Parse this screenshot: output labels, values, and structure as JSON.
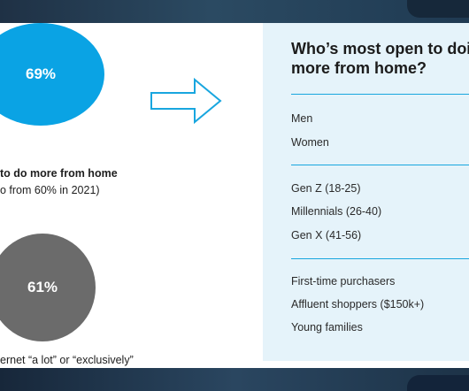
{
  "chart_data": [
    {
      "type": "pie",
      "values": [
        69
      ],
      "value_label": "69%",
      "caption_lines": [
        "to do more from home",
        "o from 60% in 2021)"
      ],
      "color": "#0aa3e4"
    },
    {
      "type": "pie",
      "values": [
        61
      ],
      "value_label": "61%",
      "caption_lines": [
        "ernet “a lot” or “exclusively”"
      ],
      "color": "#6b6b6b"
    }
  ],
  "panel": {
    "title_line1": "Who’s most open to doi",
    "title_line2": "more from home?",
    "groups": [
      [
        "Men",
        "Women"
      ],
      [
        "Gen Z (18-25)",
        "Millennials (26-40)",
        "Gen X (41-56)"
      ],
      [
        "First-time purchasers",
        "Affluent shoppers ($150k+)",
        "Young families"
      ]
    ]
  },
  "colors": {
    "accent": "#0aa3e4",
    "secondary": "#6b6b6b",
    "panel_bg": "#e5f3fa"
  },
  "icons": [
    "arrow-right-outline-icon"
  ]
}
